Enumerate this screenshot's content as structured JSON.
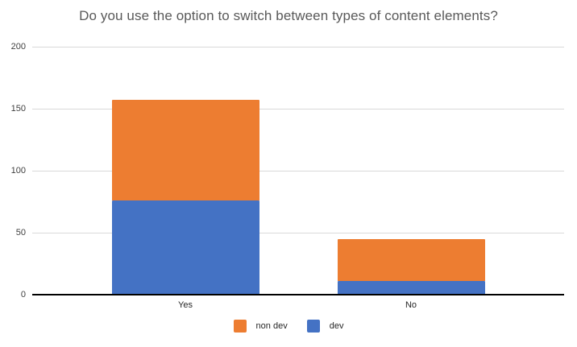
{
  "title": "Do you use the option to switch between types of content elements?",
  "chart_data": {
    "type": "bar",
    "stacked": true,
    "title": "Do you use the option to switch between types of content elements?",
    "categories": [
      "Yes",
      "No"
    ],
    "series": [
      {
        "name": "dev",
        "color": "#4472C4",
        "values": [
          76,
          11
        ]
      },
      {
        "name": "non dev",
        "color": "#ED7D31",
        "values": [
          81,
          34
        ]
      }
    ],
    "totals": [
      157,
      45
    ],
    "xlabel": "",
    "ylabel": "",
    "ylim": [
      0,
      200
    ],
    "yticks": [
      0,
      50,
      100,
      150,
      200
    ],
    "grid": true,
    "legend_position": "bottom",
    "legend": [
      {
        "label": "non dev",
        "color": "#ED7D31"
      },
      {
        "label": "dev",
        "color": "#4472C4"
      }
    ]
  },
  "colors": {
    "non_dev": "#ED7D31",
    "dev": "#4472C4",
    "gridline": "#D9D9D9",
    "axis_line": "#000000",
    "title_text": "#595959",
    "tick_text": "#404040"
  }
}
